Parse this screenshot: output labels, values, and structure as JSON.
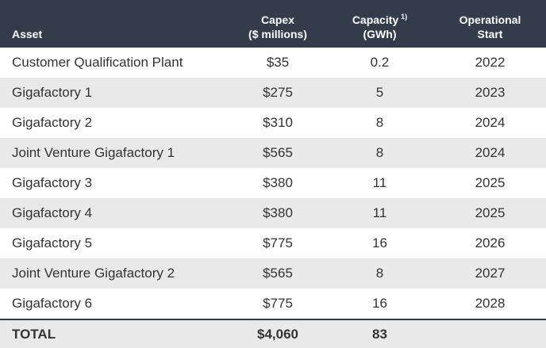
{
  "table": {
    "header": [
      {
        "lines": [
          "Asset"
        ]
      },
      {
        "lines": [
          "Capex",
          "($ millions)"
        ]
      },
      {
        "lines": [
          "Capacity",
          "(GWh)"
        ],
        "note": "1)"
      },
      {
        "lines": [
          "Operational",
          "Start"
        ]
      }
    ],
    "rows": [
      [
        "Customer Qualification Plant",
        "$35",
        "0.2",
        "2022"
      ],
      [
        "Gigafactory 1",
        "$275",
        "5",
        "2023"
      ],
      [
        "Gigafactory 2",
        "$310",
        "8",
        "2024"
      ],
      [
        "Joint Venture Gigafactory 1",
        "$565",
        "8",
        "2024"
      ],
      [
        "Gigafactory 3",
        "$380",
        "11",
        "2025"
      ],
      [
        "Gigafactory 4",
        "$380",
        "11",
        "2025"
      ],
      [
        "Gigafactory 5",
        "$775",
        "16",
        "2026"
      ],
      [
        "Joint Venture Gigafactory 2",
        "$565",
        "8",
        "2027"
      ],
      [
        "Gigafactory 6",
        "$775",
        "16",
        "2028"
      ]
    ],
    "total": [
      "TOTAL",
      "$4,060",
      "83"
    ]
  }
}
